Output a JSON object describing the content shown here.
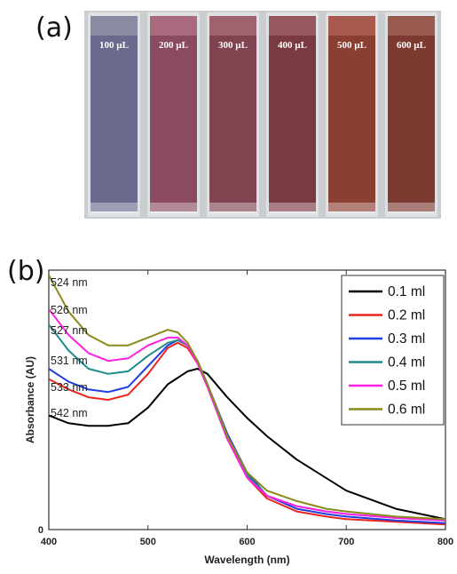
{
  "panel_a": {
    "label": "(a)",
    "cuvettes": [
      {
        "label": "100 µL",
        "color": "#6a6b8c",
        "top_color": "#8a8aa3"
      },
      {
        "label": "200 µL",
        "color": "#8a4a5f",
        "top_color": "#a86a7c"
      },
      {
        "label": "300 µL",
        "color": "#7f4450",
        "top_color": "#9d6470"
      },
      {
        "label": "400 µL",
        "color": "#7a3a42",
        "top_color": "#985860"
      },
      {
        "label": "500 µL",
        "color": "#8b3e32",
        "top_color": "#a85a4e"
      },
      {
        "label": "600 µL",
        "color": "#7d3a30",
        "top_color": "#9a5a4e"
      }
    ],
    "background_color": "#c9cdd0"
  },
  "panel_b": {
    "label": "(b)",
    "peak_labels": [
      "524 nm",
      "526 nm",
      "527 nm",
      "531 nm",
      "533 nm",
      "542 nm"
    ]
  },
  "chart_data": {
    "type": "line",
    "title": "",
    "xlabel": "Wavelength (nm)",
    "ylabel": "Absorbance (AU)",
    "xlim": [
      400,
      800
    ],
    "ylim": [
      0,
      1
    ],
    "xticks": [
      400,
      500,
      600,
      700,
      800
    ],
    "yticks": [
      0
    ],
    "grid": false,
    "legend_position": "top-right",
    "series": [
      {
        "name": "0.1 ml",
        "color": "#000000",
        "x": [
          400,
          420,
          440,
          460,
          480,
          500,
          520,
          540,
          550,
          560,
          580,
          600,
          620,
          650,
          700,
          750,
          800
        ],
        "y": [
          0.44,
          0.41,
          0.4,
          0.4,
          0.41,
          0.47,
          0.56,
          0.61,
          0.62,
          0.6,
          0.51,
          0.43,
          0.36,
          0.27,
          0.15,
          0.08,
          0.04
        ]
      },
      {
        "name": "0.2 ml",
        "color": "#e8251f",
        "x": [
          400,
          420,
          440,
          460,
          480,
          500,
          520,
          530,
          540,
          550,
          560,
          580,
          600,
          620,
          650,
          680,
          700,
          750,
          800
        ],
        "y": [
          0.58,
          0.54,
          0.51,
          0.5,
          0.52,
          0.6,
          0.7,
          0.72,
          0.7,
          0.64,
          0.55,
          0.35,
          0.2,
          0.12,
          0.07,
          0.05,
          0.04,
          0.03,
          0.02
        ]
      },
      {
        "name": "0.3 ml",
        "color": "#1f3fe0",
        "x": [
          400,
          420,
          440,
          460,
          480,
          500,
          520,
          530,
          540,
          550,
          560,
          580,
          600,
          620,
          650,
          680,
          700,
          750,
          800
        ],
        "y": [
          0.62,
          0.57,
          0.54,
          0.53,
          0.55,
          0.63,
          0.71,
          0.73,
          0.71,
          0.65,
          0.56,
          0.37,
          0.22,
          0.13,
          0.08,
          0.06,
          0.05,
          0.035,
          0.025
        ]
      },
      {
        "name": "0.4 ml",
        "color": "#1e8c8c",
        "x": [
          400,
          420,
          440,
          460,
          480,
          500,
          520,
          530,
          540,
          550,
          560,
          580,
          600,
          620,
          650,
          680,
          700,
          750,
          800
        ],
        "y": [
          0.79,
          0.69,
          0.62,
          0.6,
          0.61,
          0.67,
          0.72,
          0.73,
          0.71,
          0.65,
          0.56,
          0.36,
          0.21,
          0.13,
          0.09,
          0.07,
          0.06,
          0.045,
          0.035
        ]
      },
      {
        "name": "0.5 ml",
        "color": "#ff1fe6",
        "x": [
          400,
          420,
          440,
          460,
          480,
          500,
          520,
          530,
          540,
          550,
          560,
          580,
          600,
          620,
          650,
          680,
          700,
          750,
          800
        ],
        "y": [
          0.85,
          0.75,
          0.68,
          0.65,
          0.66,
          0.71,
          0.74,
          0.74,
          0.71,
          0.64,
          0.55,
          0.35,
          0.2,
          0.13,
          0.09,
          0.07,
          0.06,
          0.045,
          0.035
        ]
      },
      {
        "name": "0.6 ml",
        "color": "#8a8a1a",
        "x": [
          400,
          420,
          440,
          460,
          480,
          500,
          520,
          530,
          540,
          550,
          560,
          580,
          600,
          620,
          650,
          680,
          700,
          750,
          800
        ],
        "y": [
          0.98,
          0.84,
          0.75,
          0.71,
          0.71,
          0.74,
          0.77,
          0.76,
          0.72,
          0.65,
          0.56,
          0.36,
          0.22,
          0.15,
          0.11,
          0.08,
          0.07,
          0.05,
          0.04
        ]
      }
    ]
  }
}
